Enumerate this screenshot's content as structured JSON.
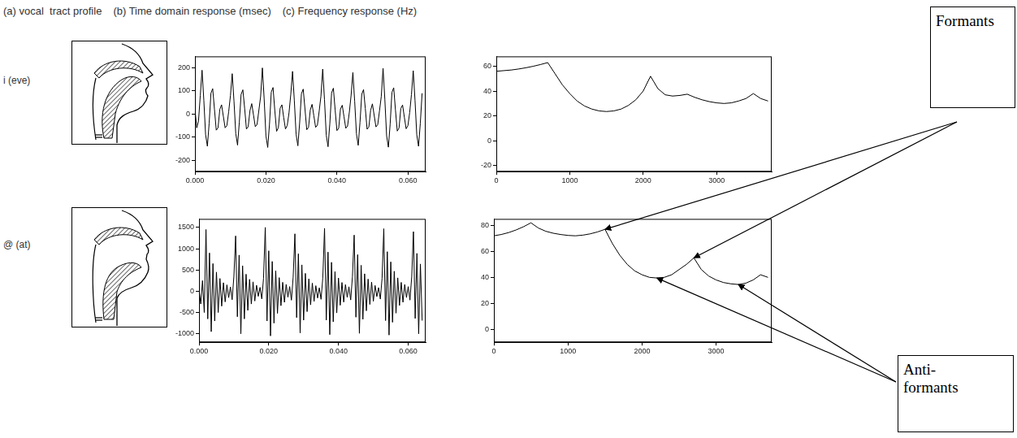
{
  "header": [
    "(a) vocal  tract profile",
    "(b) Time domain response (msec)",
    "(c) Frequency response (Hz)"
  ],
  "row_labels": [
    "i (eve)",
    "@ (at)"
  ],
  "chart_data": [
    {
      "type": "line",
      "color": "#000000",
      "grid": false,
      "x": [
        0,
        0.0005,
        0.001,
        0.0015,
        0.002,
        0.0025,
        0.003,
        0.0035,
        0.004,
        0.0045,
        0.005,
        0.0055,
        0.006,
        0.0065,
        0.007,
        0.0075,
        0.008,
        0.0085,
        0.009,
        0.0095,
        0.01,
        0.0105,
        0.011,
        0.0115,
        0.012,
        0.0125,
        0.013,
        0.0135,
        0.014,
        0.0145,
        0.015,
        0.0155,
        0.016,
        0.0165,
        0.017,
        0.0175,
        0.018,
        0.0185,
        0.019,
        0.0195,
        0.02,
        0.0205,
        0.021,
        0.0215,
        0.022,
        0.0225,
        0.023,
        0.0235,
        0.024,
        0.0245,
        0.025,
        0.0255,
        0.026,
        0.0265,
        0.027,
        0.0275,
        0.028,
        0.0285,
        0.029,
        0.0295,
        0.03,
        0.0305,
        0.031,
        0.0315,
        0.032,
        0.0325,
        0.033,
        0.0335,
        0.034,
        0.0345,
        0.035,
        0.0355,
        0.036,
        0.0365,
        0.037,
        0.0375,
        0.038,
        0.0385,
        0.039,
        0.0395,
        0.04,
        0.0405,
        0.041,
        0.0415,
        0.042,
        0.0425,
        0.043,
        0.0435,
        0.044,
        0.0445,
        0.045,
        0.0455,
        0.046,
        0.0465,
        0.047,
        0.0475,
        0.048,
        0.0485,
        0.049,
        0.0495,
        0.05,
        0.0505,
        0.051,
        0.0515,
        0.052,
        0.0525,
        0.053,
        0.0535,
        0.054,
        0.0545,
        0.055,
        0.0555,
        0.056,
        0.0565,
        0.057,
        0.0575,
        0.058,
        0.0585,
        0.059,
        0.0595,
        0.06,
        0.0605,
        0.061,
        0.0615,
        0.062,
        0.0625,
        0.063,
        0.0635,
        0.064
      ],
      "values": [
        20,
        -60,
        -30,
        80,
        190,
        60,
        -90,
        -140,
        -40,
        90,
        110,
        20,
        -70,
        -60,
        20,
        40,
        -10,
        -60,
        -50,
        10,
        80,
        175,
        55,
        -85,
        -135,
        -35,
        85,
        105,
        25,
        -65,
        -55,
        15,
        45,
        -5,
        -55,
        -45,
        15,
        75,
        200,
        65,
        -95,
        -145,
        -45,
        95,
        115,
        15,
        -75,
        -60,
        25,
        40,
        -15,
        -65,
        -50,
        5,
        85,
        185,
        58,
        -88,
        -138,
        -38,
        88,
        108,
        22,
        -68,
        -58,
        18,
        42,
        -8,
        -58,
        -48,
        12,
        78,
        195,
        62,
        -92,
        -142,
        -42,
        92,
        112,
        18,
        -72,
        -62,
        22,
        38,
        -12,
        -62,
        -52,
        8,
        82,
        180,
        56,
        -86,
        -136,
        -36,
        86,
        106,
        24,
        -66,
        -56,
        16,
        44,
        -6,
        -56,
        -46,
        14,
        76,
        198,
        64,
        -94,
        -144,
        -44,
        94,
        114,
        16,
        -74,
        -61,
        24,
        39,
        -14,
        -64,
        -51,
        6,
        84,
        188,
        60,
        -90,
        -140,
        -40,
        90
      ],
      "xlim": [
        0,
        0.065
      ],
      "xticks": [
        {
          "value": 0,
          "label": "0.000"
        },
        {
          "value": 0.02,
          "label": "0.020"
        },
        {
          "value": 0.04,
          "label": "0.040"
        },
        {
          "value": 0.06,
          "label": "0.060"
        }
      ],
      "ylim": [
        -250,
        250
      ],
      "yticks": [
        -200,
        -100,
        0,
        100,
        200
      ]
    },
    {
      "type": "line",
      "color": "#000000",
      "grid": false,
      "x": [
        0,
        100,
        200,
        300,
        400,
        500,
        600,
        700,
        800,
        900,
        1000,
        1100,
        1200,
        1300,
        1400,
        1500,
        1600,
        1700,
        1800,
        1900,
        2000,
        2100,
        2200,
        2300,
        2400,
        2500,
        2600,
        2700,
        2800,
        2900,
        3000,
        3100,
        3200,
        3300,
        3400,
        3500,
        3600,
        3700
      ],
      "values": [
        56,
        56.5,
        57,
        57.8,
        58.8,
        60,
        61.4,
        63,
        54,
        45,
        38,
        32,
        28,
        25.5,
        24,
        23.5,
        24,
        25.5,
        28.5,
        33,
        40,
        52,
        42,
        37,
        36,
        36.5,
        37.5,
        35,
        33,
        31.5,
        30.5,
        30,
        30.5,
        32,
        34,
        38,
        34,
        32
      ],
      "xlim": [
        0,
        3750
      ],
      "xticks": [
        0,
        1000,
        2000,
        3000
      ],
      "ylim": [
        -25,
        68
      ],
      "yticks": [
        -20,
        0,
        20,
        40,
        60
      ]
    },
    {
      "type": "line",
      "color": "#000000",
      "grid": false,
      "x": [
        0,
        0.0005,
        0.001,
        0.0015,
        0.002,
        0.0025,
        0.003,
        0.0035,
        0.004,
        0.0045,
        0.005,
        0.0055,
        0.006,
        0.0065,
        0.007,
        0.0075,
        0.008,
        0.0085,
        0.009,
        0.0095,
        0.01,
        0.0105,
        0.011,
        0.0115,
        0.012,
        0.0125,
        0.013,
        0.0135,
        0.014,
        0.0145,
        0.015,
        0.0155,
        0.016,
        0.0165,
        0.017,
        0.0175,
        0.018,
        0.0185,
        0.019,
        0.0195,
        0.02,
        0.0205,
        0.021,
        0.0215,
        0.022,
        0.0225,
        0.023,
        0.0235,
        0.024,
        0.0245,
        0.025,
        0.0255,
        0.026,
        0.0265,
        0.027,
        0.0275,
        0.028,
        0.0285,
        0.029,
        0.0295,
        0.03,
        0.0305,
        0.031,
        0.0315,
        0.032,
        0.0325,
        0.033,
        0.0335,
        0.034,
        0.0345,
        0.035,
        0.0355,
        0.036,
        0.0365,
        0.037,
        0.0375,
        0.038,
        0.0385,
        0.039,
        0.0395,
        0.04,
        0.0405,
        0.041,
        0.0415,
        0.042,
        0.0425,
        0.043,
        0.0435,
        0.044,
        0.0445,
        0.045,
        0.0455,
        0.046,
        0.0465,
        0.047,
        0.0475,
        0.048,
        0.0485,
        0.049,
        0.0495,
        0.05,
        0.0505,
        0.051,
        0.0515,
        0.052,
        0.0525,
        0.053,
        0.0535,
        0.054,
        0.0545,
        0.055,
        0.0555,
        0.056,
        0.0565,
        0.057,
        0.0575,
        0.058,
        0.0585,
        0.059,
        0.0595,
        0.06,
        0.0605,
        0.061,
        0.0615,
        0.062,
        0.0625,
        0.063,
        0.0635,
        0.064
      ],
      "values": [
        50,
        -300,
        250,
        -500,
        1450,
        -650,
        900,
        -950,
        650,
        -700,
        450,
        -500,
        300,
        -350,
        200,
        -250,
        150,
        -150,
        100,
        -200,
        350,
        1300,
        -600,
        850,
        -1000,
        600,
        -650,
        400,
        -450,
        280,
        -300,
        220,
        -230,
        140,
        -120,
        90,
        -180,
        300,
        1500,
        -700,
        950,
        -1050,
        700,
        -750,
        480,
        -520,
        320,
        -340,
        210,
        -260,
        160,
        -140,
        110,
        -210,
        330,
        1350,
        -620,
        880,
        -980,
        620,
        -680,
        420,
        -480,
        290,
        -320,
        190,
        -240,
        130,
        -160,
        80,
        -190,
        310,
        1480,
        -680,
        920,
        -1020,
        680,
        -720,
        460,
        -510,
        310,
        -330,
        205,
        -255,
        155,
        -145,
        105,
        -205,
        340,
        1320,
        -610,
        860,
        -990,
        610,
        -660,
        410,
        -460,
        285,
        -310,
        215,
        -235,
        135,
        -125,
        85,
        -185,
        305,
        1470,
        -690,
        930,
        -1030,
        690,
        -730,
        470,
        -515,
        315,
        -335,
        208,
        -258,
        158,
        -148,
        108,
        -208,
        335,
        1400,
        -640,
        890,
        -1000,
        640,
        -690
      ],
      "xlim": [
        0,
        0.065
      ],
      "xticks": [
        {
          "value": 0,
          "label": "0.000"
        },
        {
          "value": 0.02,
          "label": "0.020"
        },
        {
          "value": 0.04,
          "label": "0.040"
        },
        {
          "value": 0.06,
          "label": "0.060"
        }
      ],
      "ylim": [
        -1200,
        1700
      ],
      "yticks": [
        -1000,
        -500,
        0,
        500,
        1000,
        1500
      ]
    },
    {
      "type": "line",
      "color": "#000000",
      "grid": false,
      "x": [
        0,
        100,
        200,
        300,
        400,
        500,
        600,
        700,
        800,
        900,
        1000,
        1100,
        1200,
        1300,
        1400,
        1500,
        1600,
        1700,
        1800,
        1900,
        2000,
        2100,
        2200,
        2300,
        2400,
        2500,
        2600,
        2700,
        2800,
        2900,
        3000,
        3100,
        3200,
        3300,
        3400,
        3500,
        3600,
        3700
      ],
      "values": [
        72,
        73,
        74.5,
        76.5,
        79,
        82,
        78,
        75.5,
        74,
        73,
        72.3,
        72,
        72.5,
        73.5,
        75,
        77,
        66,
        57,
        50,
        45,
        42,
        40,
        39.5,
        40,
        42,
        46,
        50,
        55,
        46,
        41,
        38,
        36,
        35,
        34.5,
        35.5,
        38,
        42,
        40
      ],
      "xlim": [
        0,
        3750
      ],
      "xticks": [
        0,
        1000,
        2000,
        3000
      ],
      "ylim": [
        -10,
        85
      ],
      "yticks": [
        0,
        20,
        40,
        60,
        80
      ],
      "annotations": [
        {
          "text": "Formants",
          "points": [
            {
              "x": 1500,
              "y": 77
            },
            {
              "x": 2700,
              "y": 55
            }
          ]
        },
        {
          "text": "Anti-formants",
          "points": [
            {
              "x": 2200,
              "y": 39.5
            },
            {
              "x": 3300,
              "y": 34.5
            }
          ]
        }
      ]
    }
  ]
}
